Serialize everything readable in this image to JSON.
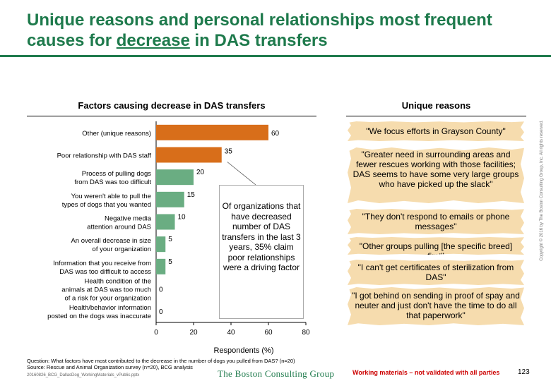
{
  "slide": {
    "title_before": "Unique reasons and personal relationships most frequent causes for ",
    "title_emph": "decrease",
    "title_after": " in DAS transfers",
    "chart_title": "Factors causing decrease in DAS transfers",
    "unique_title": "Unique reasons",
    "callout": "Of organizations that have decreased number of DAS transfers in the last 3 years, 35% claim poor relationships were a driving factor",
    "quotes": [
      "\"We focus efforts in Grayson County\"",
      "\"Greater need in surrounding areas and fewer rescues working with those facilities; DAS seems to have some very large groups who have picked up the slack\"",
      "\"They don't respond to emails or phone messages\"",
      "\"Other groups pulling [the specific breed] first\"",
      "\"I can't get certificates of sterilization from DAS\"",
      "\"I got behind on sending in proof of spay and neuter and just don't have the time to do all that paperwork\""
    ],
    "footnote_question": "Question: What factors have most contributed to the decrease in the number of dogs you pulled from DAS? (n=20)",
    "footnote_source": "Source: Rescue and Animal Organization survey (n=20), BCG analysis",
    "file_name": "20160826_BCG_DallasDog_WorkingMaterials_vPublic.pptx",
    "logo_text": "The Boston Consulting Group",
    "working_note": "Working materials – not validated with all parties",
    "page_number": "123",
    "copyright": "Copyright © 2016 by The Boston Consulting Group, Inc. All rights reserved."
  },
  "colors": {
    "orange": "#d86e1a",
    "green": "#6aad82",
    "title_green": "#1e7a4c",
    "quote_bg": "#f6dcae"
  },
  "chart_data": {
    "type": "bar",
    "orientation": "horizontal",
    "categories": [
      "Other (unique reasons)",
      "Poor relationship with DAS staff",
      "Process of pulling dogs\nfrom DAS was too difficult",
      "You weren't able to pull the\ntypes of dogs that you wanted",
      "Negative media\nattention around DAS",
      "An overall decrease in size\nof your organization",
      "Information that you receive from\nDAS was too difficult to access",
      "Health condition of the\nanimals at DAS was too much\nof a risk for your organization",
      "Health/behavior information\nposted on the dogs was inaccurate"
    ],
    "values": [
      60,
      35,
      20,
      15,
      10,
      5,
      5,
      0,
      0
    ],
    "bar_colors": [
      "#d86e1a",
      "#d86e1a",
      "#6aad82",
      "#6aad82",
      "#6aad82",
      "#6aad82",
      "#6aad82",
      "#6aad82",
      "#6aad82"
    ],
    "xlabel": "Respondents (%)",
    "xlim": [
      0,
      80
    ],
    "xticks": [
      0,
      20,
      40,
      60,
      80
    ],
    "grid": false
  }
}
